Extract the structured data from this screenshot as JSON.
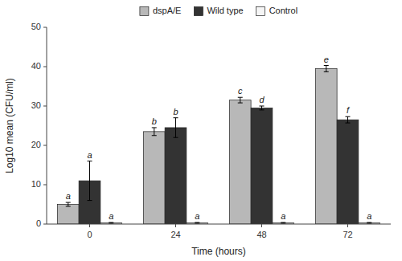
{
  "chart_data": {
    "type": "bar",
    "xlabel": "Time (hours)",
    "ylabel": "Log10 mean (CFU/ml)",
    "categories": [
      "0",
      "24",
      "48",
      "72"
    ],
    "series": [
      {
        "name": "dspA/E",
        "color": "#b8b8b8",
        "values": [
          5.0,
          23.5,
          31.5,
          39.5
        ],
        "errors": [
          0.5,
          1.0,
          0.7,
          0.8
        ],
        "annotations": [
          "a",
          "b",
          "c",
          "e"
        ]
      },
      {
        "name": "Wild type",
        "color": "#333333",
        "values": [
          11.0,
          24.5,
          29.5,
          26.5
        ],
        "errors": [
          5.0,
          2.5,
          0.5,
          0.8
        ],
        "annotations": [
          "a",
          "b",
          "d",
          "f"
        ]
      },
      {
        "name": "Control",
        "color": "#f5f5f5",
        "values": [
          0.3,
          0.3,
          0.3,
          0.3
        ],
        "errors": [
          0.1,
          0.1,
          0.1,
          0.1
        ],
        "annotations": [
          "a",
          "a",
          "a",
          "a"
        ]
      }
    ],
    "ylim": [
      0,
      50
    ],
    "yticks": [
      0,
      10,
      20,
      30,
      40,
      50
    ],
    "grid": false,
    "legend": "top"
  }
}
